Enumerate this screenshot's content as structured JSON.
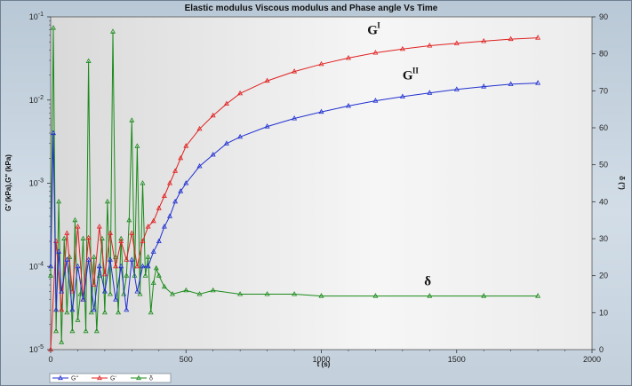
{
  "chart_data": {
    "type": "line",
    "title": "Elastic modulus Viscous modulus and Phase angle Vs Time",
    "xlabel": "t (s)",
    "ylabel_left": "G' (kPa),G\" (kPa)",
    "ylabel_right": "δ (°)",
    "xlim": [
      0,
      2000
    ],
    "x_ticks": [
      "0",
      "500",
      "1000",
      "1500",
      "2000"
    ],
    "y_left_scale": "log",
    "y_left_lim": [
      1e-05,
      0.1
    ],
    "y_left_ticks": [
      {
        "base": "10",
        "exp": "-5"
      },
      {
        "base": "10",
        "exp": "-4"
      },
      {
        "base": "10",
        "exp": "-3"
      },
      {
        "base": "10",
        "exp": "-2"
      },
      {
        "base": "10",
        "exp": "-1"
      }
    ],
    "y_right_lim": [
      0,
      90
    ],
    "y_right_ticks": [
      "0",
      "10",
      "20",
      "30",
      "40",
      "50",
      "60",
      "70",
      "80",
      "90"
    ],
    "grid": false,
    "legend_position": "bottom-left",
    "series": [
      {
        "name": "G'",
        "color": "#e02020",
        "axis": "left",
        "x": [
          0,
          20,
          40,
          60,
          80,
          100,
          120,
          140,
          160,
          180,
          200,
          220,
          240,
          260,
          280,
          300,
          320,
          340,
          360,
          380,
          400,
          420,
          440,
          460,
          480,
          500,
          550,
          600,
          650,
          700,
          800,
          900,
          1000,
          1100,
          1200,
          1300,
          1400,
          1500,
          1600,
          1700,
          1800
        ],
        "y": [
          1e-05,
          0.0002,
          3e-05,
          0.00025,
          5e-05,
          0.0003,
          4e-05,
          0.00022,
          6e-05,
          0.0003,
          8e-05,
          0.00025,
          0.0001,
          0.0002,
          0.00012,
          0.00025,
          0.0001,
          0.0002,
          0.0003,
          0.00035,
          0.0005,
          0.0007,
          0.001,
          0.0014,
          0.002,
          0.0028,
          0.0045,
          0.0065,
          0.009,
          0.012,
          0.017,
          0.022,
          0.027,
          0.032,
          0.037,
          0.041,
          0.045,
          0.048,
          0.051,
          0.054,
          0.056
        ]
      },
      {
        "name": "G\"",
        "color": "#2030d0",
        "axis": "left",
        "x": [
          0,
          10,
          20,
          30,
          40,
          60,
          80,
          100,
          120,
          140,
          160,
          180,
          200,
          220,
          240,
          260,
          280,
          300,
          320,
          340,
          360,
          380,
          400,
          420,
          440,
          460,
          480,
          500,
          550,
          600,
          650,
          700,
          800,
          900,
          1000,
          1100,
          1200,
          1300,
          1400,
          1500,
          1600,
          1700,
          1800
        ],
        "y": [
          0.0001,
          0.004,
          3e-05,
          0.00015,
          5e-05,
          0.00012,
          3e-05,
          0.0001,
          4e-05,
          0.00012,
          3e-05,
          0.0001,
          5e-05,
          0.00012,
          4e-05,
          0.0001,
          3e-05,
          0.00012,
          5e-05,
          0.0001,
          0.0001,
          0.00015,
          0.0002,
          0.0003,
          0.0004,
          0.0006,
          0.0008,
          0.001,
          0.0016,
          0.0022,
          0.003,
          0.0036,
          0.0048,
          0.006,
          0.0072,
          0.0085,
          0.0098,
          0.011,
          0.0122,
          0.0134,
          0.0145,
          0.0155,
          0.016
        ]
      },
      {
        "name": "δ",
        "color": "#1a8a1a",
        "axis": "right",
        "x": [
          0,
          10,
          20,
          30,
          40,
          50,
          60,
          70,
          80,
          90,
          100,
          110,
          120,
          130,
          140,
          150,
          160,
          170,
          180,
          190,
          200,
          210,
          220,
          230,
          240,
          250,
          260,
          270,
          280,
          290,
          300,
          310,
          320,
          330,
          340,
          350,
          360,
          370,
          380,
          390,
          400,
          420,
          450,
          500,
          550,
          600,
          700,
          800,
          900,
          1000,
          1200,
          1400,
          1600,
          1800
        ],
        "y": [
          20,
          87,
          5,
          40,
          2,
          30,
          10,
          25,
          5,
          35,
          8,
          15,
          30,
          5,
          78,
          10,
          25,
          5,
          20,
          30,
          10,
          40,
          15,
          86,
          25,
          10,
          30,
          15,
          20,
          35,
          62,
          20,
          55,
          15,
          45,
          20,
          25,
          10,
          18,
          22,
          20,
          17,
          15,
          16,
          15,
          16,
          15,
          15,
          15,
          14.5,
          14.5,
          14.5,
          14.5,
          14.5
        ]
      }
    ],
    "annotations": [
      {
        "text": "G",
        "sup": "I",
        "series": "G'"
      },
      {
        "text": "G",
        "sup": "II",
        "series": "G\""
      },
      {
        "text": "δ",
        "sup": "",
        "series": "δ"
      }
    ],
    "legend": [
      {
        "label": "G\"",
        "color": "#2030d0"
      },
      {
        "label": "G'",
        "color": "#e02020"
      },
      {
        "label": "δ",
        "color": "#1a8a1a"
      }
    ]
  }
}
